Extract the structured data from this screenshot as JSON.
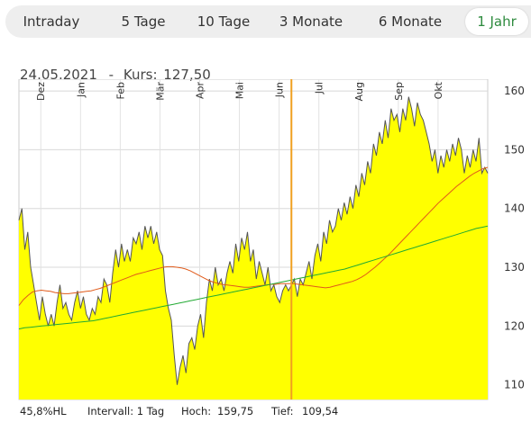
{
  "tabs": [
    {
      "label": "Intraday",
      "active": false
    },
    {
      "label": "5 Tage",
      "active": false
    },
    {
      "label": "10 Tage",
      "active": false
    },
    {
      "label": "3 Monate",
      "active": false
    },
    {
      "label": "6 Monate",
      "active": false
    },
    {
      "label": "1 Jahr",
      "active": true
    }
  ],
  "header": {
    "date": "24.05.2021",
    "separator": "-",
    "kurs_label": "Kurs:",
    "kurs_value": "127,50"
  },
  "footer": {
    "hl": "45,8%HL",
    "interval": "Intervall: 1 Tag",
    "hoch_label": "Hoch:",
    "hoch_value": "159,75",
    "tief_label": "Tief:",
    "tief_value": "109,54"
  },
  "colors": {
    "area": "#ffff00",
    "price_line": "#555555",
    "ma_short": "#e05a1a",
    "ma_long": "#22aa33",
    "cursor": "#f0a020",
    "active_tab": "#2e8b3e"
  },
  "chart_data": {
    "type": "area",
    "x_tick_labels": [
      "Dez",
      "Jan",
      "Feb",
      "Mär",
      "Apr",
      "Mai",
      "Jun",
      "Jul",
      "Aug",
      "Sep",
      "Okt"
    ],
    "y_ticks": [
      110,
      120,
      130,
      140,
      150,
      160
    ],
    "ylim": [
      107.5,
      162
    ],
    "grid": true,
    "cursor_position_index": 93,
    "series": [
      {
        "role": "price",
        "values": [
          138,
          140,
          133,
          136,
          130,
          127,
          124,
          121,
          125,
          122,
          120,
          122,
          120,
          124,
          127,
          123,
          124,
          122,
          121,
          124,
          126,
          123,
          125,
          122,
          121,
          123,
          122,
          125,
          124,
          128,
          127,
          124,
          129,
          133,
          130,
          134,
          131,
          133,
          131,
          135,
          134,
          136,
          133,
          137,
          135,
          137,
          134,
          136,
          133,
          132,
          126,
          123,
          121,
          115,
          110,
          113,
          115,
          112,
          117,
          118,
          116,
          120,
          122,
          118,
          124,
          128,
          126,
          130,
          127,
          128,
          126,
          129,
          131,
          129,
          134,
          131,
          135,
          133,
          136,
          131,
          133,
          128,
          131,
          129,
          127,
          130,
          126,
          127,
          125,
          124,
          126,
          127,
          126,
          127,
          128,
          125,
          128,
          127,
          129,
          131,
          128,
          132,
          134,
          131,
          136,
          134,
          138,
          136,
          137,
          140,
          138,
          141,
          139,
          142,
          140,
          144,
          142,
          146,
          144,
          148,
          146,
          151,
          149,
          153,
          151,
          155,
          152,
          157,
          155,
          156,
          153,
          157,
          155,
          159,
          157,
          154,
          158,
          156,
          155,
          153,
          151,
          148,
          150,
          146,
          149,
          147,
          150,
          148,
          151,
          149,
          152,
          150,
          146,
          149,
          147,
          150,
          148,
          152,
          146,
          147,
          146
        ]
      },
      {
        "role": "moving-average-short",
        "values": [
          123.5,
          124.5,
          125.2,
          125.8,
          126.0,
          126.1,
          126.0,
          125.9,
          125.7,
          125.6,
          125.5,
          125.5,
          125.6,
          125.7,
          125.8,
          125.9,
          126.0,
          126.2,
          126.4,
          126.7,
          127.0,
          127.3,
          127.6,
          127.9,
          128.2,
          128.5,
          128.8,
          129.0,
          129.2,
          129.4,
          129.6,
          129.8,
          130.0,
          130.1,
          130.1,
          130.0,
          129.9,
          129.7,
          129.4,
          129.0,
          128.6,
          128.2,
          127.8,
          127.5,
          127.3,
          127.1,
          127.0,
          126.9,
          126.8,
          126.7,
          126.6,
          126.6,
          126.7,
          126.8,
          126.9,
          127.0,
          127.1,
          127.1,
          127.2,
          127.2,
          127.2,
          127.2,
          127.1,
          127.0,
          126.9,
          126.8,
          126.7,
          126.6,
          126.5,
          126.6,
          126.8,
          127.0,
          127.2,
          127.4,
          127.6,
          127.9,
          128.3,
          128.8,
          129.4,
          130.0,
          130.7,
          131.4,
          132.1,
          132.9,
          133.7,
          134.5,
          135.3,
          136.1,
          136.9,
          137.7,
          138.5,
          139.3,
          140.1,
          140.9,
          141.6,
          142.3,
          143.0,
          143.7,
          144.3,
          144.9,
          145.5,
          146.0,
          146.4,
          146.8,
          147.0
        ]
      },
      {
        "role": "moving-average-long",
        "values": [
          119.5,
          119.7,
          119.8,
          119.9,
          120.0,
          120.1,
          120.2,
          120.3,
          120.4,
          120.5,
          120.6,
          120.7,
          120.8,
          120.9,
          121.1,
          121.3,
          121.5,
          121.7,
          121.9,
          122.1,
          122.3,
          122.5,
          122.7,
          122.9,
          123.1,
          123.3,
          123.5,
          123.7,
          123.9,
          124.1,
          124.3,
          124.5,
          124.7,
          124.9,
          125.1,
          125.3,
          125.5,
          125.7,
          125.9,
          126.1,
          126.3,
          126.5,
          126.7,
          126.9,
          127.1,
          127.3,
          127.5,
          127.7,
          127.9,
          128.1,
          128.3,
          128.5,
          128.7,
          128.9,
          129.1,
          129.3,
          129.5,
          129.7,
          130.0,
          130.3,
          130.6,
          130.9,
          131.2,
          131.5,
          131.8,
          132.1,
          132.4,
          132.7,
          133.0,
          133.3,
          133.6,
          133.9,
          134.2,
          134.5,
          134.8,
          135.1,
          135.4,
          135.7,
          136.0,
          136.3,
          136.6,
          136.8,
          137.0
        ]
      }
    ]
  }
}
